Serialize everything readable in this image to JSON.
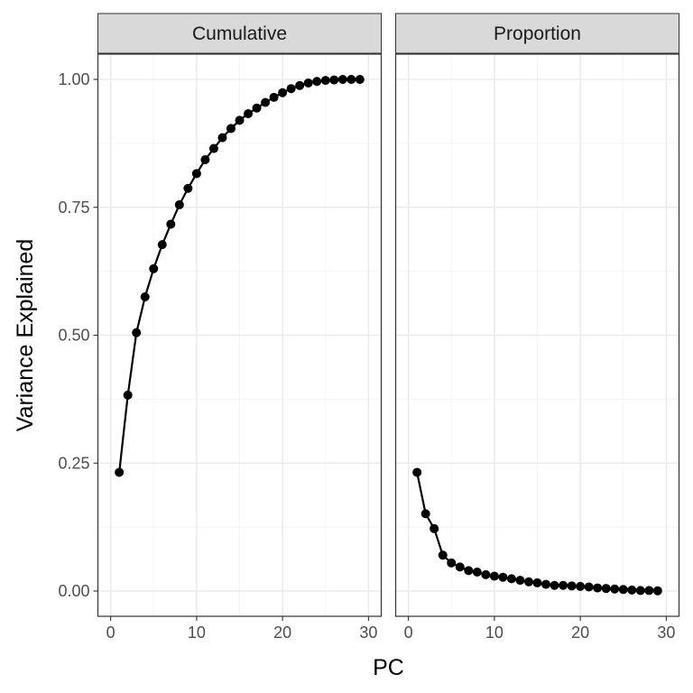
{
  "chart_data": {
    "type": "line",
    "xlabel": "PC",
    "ylabel": "Variance Explained",
    "xlim": [
      0,
      30
    ],
    "ylim": [
      0,
      1
    ],
    "x_ticks": [
      0,
      10,
      20,
      30
    ],
    "x_tick_labels": [
      "0",
      "10",
      "20",
      "30"
    ],
    "y_ticks": [
      0,
      0.25,
      0.5,
      0.75,
      1
    ],
    "y_tick_labels": [
      "0.00",
      "0.25",
      "0.50",
      "0.75",
      "1.00"
    ],
    "grid": true,
    "legend": "none",
    "series_color": "#000000",
    "panels": [
      {
        "strip_label": "Cumulative",
        "x": [
          1,
          2,
          3,
          4,
          5,
          6,
          7,
          8,
          9,
          10,
          11,
          12,
          13,
          14,
          15,
          16,
          17,
          18,
          19,
          20,
          21,
          22,
          23,
          24,
          25,
          26,
          27,
          28,
          29
        ],
        "y": [
          0.232,
          0.383,
          0.505,
          0.575,
          0.63,
          0.677,
          0.717,
          0.755,
          0.787,
          0.816,
          0.843,
          0.865,
          0.886,
          0.904,
          0.92,
          0.933,
          0.944,
          0.955,
          0.965,
          0.974,
          0.982,
          0.988,
          0.993,
          0.996,
          0.998,
          0.999,
          1.0,
          1.0,
          1.0
        ]
      },
      {
        "strip_label": "Proportion",
        "x": [
          1,
          2,
          3,
          4,
          5,
          6,
          7,
          8,
          9,
          10,
          11,
          12,
          13,
          14,
          15,
          16,
          17,
          18,
          19,
          20,
          21,
          22,
          23,
          24,
          25,
          26,
          27,
          28,
          29
        ],
        "y": [
          0.232,
          0.151,
          0.122,
          0.07,
          0.055,
          0.047,
          0.04,
          0.037,
          0.032,
          0.029,
          0.027,
          0.024,
          0.021,
          0.018,
          0.016,
          0.013,
          0.011,
          0.011,
          0.01,
          0.009,
          0.008,
          0.006,
          0.005,
          0.004,
          0.003,
          0.002,
          0.001,
          0.001,
          0.0005
        ]
      }
    ]
  }
}
